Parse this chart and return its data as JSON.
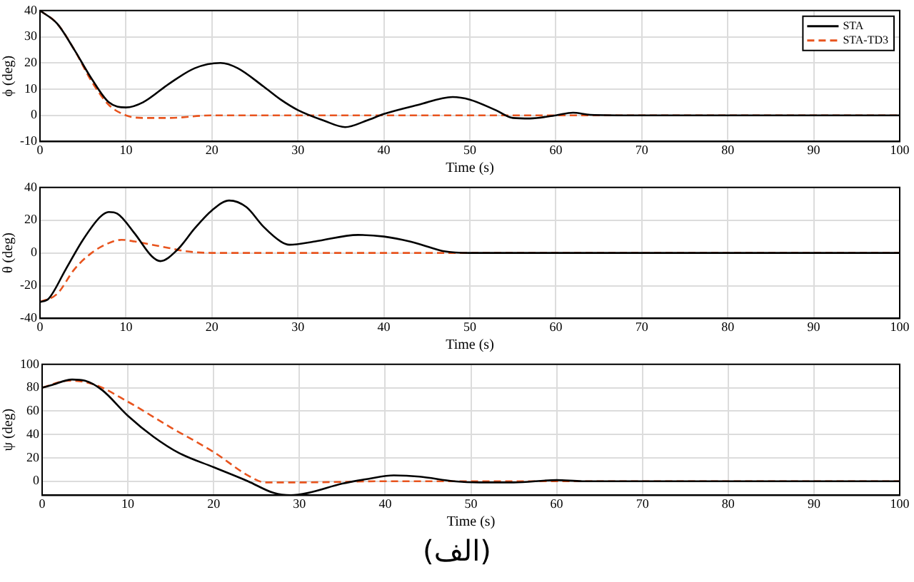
{
  "chart_data": [
    {
      "type": "line",
      "ylabel": "ϕ (deg)",
      "xlabel": "Time (s)",
      "xlim": [
        0,
        100
      ],
      "xticks": [
        0,
        10,
        20,
        30,
        40,
        50,
        60,
        70,
        80,
        90,
        100
      ],
      "ylim": [
        -10,
        40
      ],
      "yticks": [
        -10,
        0,
        10,
        20,
        30,
        40
      ],
      "grid": true,
      "legend": "top right",
      "marker": "none",
      "series": [
        {
          "name": "STA",
          "color": "#000000",
          "line_style": "solid",
          "x": [
            0,
            2,
            4,
            6,
            8,
            10,
            12,
            15,
            18,
            21,
            23,
            26,
            28,
            30,
            33,
            35.5,
            38,
            40,
            44,
            48,
            50,
            53,
            55,
            57,
            60,
            62,
            64,
            70,
            100
          ],
          "values": [
            40,
            35,
            25,
            14,
            5,
            3,
            5,
            12,
            18,
            20,
            18,
            11,
            6,
            2,
            -2,
            -4.5,
            -2,
            0.5,
            4,
            7,
            6,
            2,
            -1,
            -1.2,
            0,
            1,
            0.2,
            0,
            0
          ]
        },
        {
          "name": "STA-TD3",
          "color": "#e8541e",
          "line_style": "dashed",
          "x": [
            0,
            2,
            4,
            6,
            8,
            10,
            12,
            15,
            20,
            30,
            100
          ],
          "values": [
            40,
            35,
            25,
            13,
            4,
            0,
            -1,
            -1,
            0,
            0,
            0
          ]
        }
      ]
    },
    {
      "type": "line",
      "ylabel": "θ (deg)",
      "xlabel": "Time (s)",
      "xlim": [
        0,
        100
      ],
      "xticks": [
        0,
        10,
        20,
        30,
        40,
        50,
        60,
        70,
        80,
        90,
        100
      ],
      "ylim": [
        -40,
        40
      ],
      "yticks": [
        -40,
        -20,
        0,
        20,
        40
      ],
      "grid": true,
      "legend": false,
      "marker": "none",
      "series": [
        {
          "color": "#000000",
          "line_style": "solid",
          "x": [
            0,
            1,
            3,
            5,
            7,
            8,
            9,
            11,
            13,
            14,
            16,
            18,
            20,
            22,
            24,
            26,
            28,
            29,
            32,
            37,
            40,
            43,
            45,
            47,
            50,
            100
          ],
          "values": [
            -30,
            -28,
            -10,
            8,
            22,
            25,
            24,
            12,
            -2,
            -5,
            2,
            15,
            26,
            32,
            28,
            16,
            7,
            5,
            7,
            11,
            10,
            7,
            4,
            1,
            0,
            0
          ]
        },
        {
          "color": "#e8541e",
          "line_style": "dashed",
          "x": [
            0,
            2,
            4,
            6,
            8,
            9.5,
            11,
            13,
            15,
            17,
            20,
            100
          ],
          "values": [
            -30,
            -25,
            -10,
            0,
            6,
            8,
            7,
            5,
            3,
            1,
            0,
            0
          ]
        }
      ]
    },
    {
      "type": "line",
      "ylabel": "ψ (deg)",
      "xlabel": "Time (s)",
      "xlim": [
        0,
        100
      ],
      "xticks": [
        0,
        10,
        20,
        30,
        40,
        50,
        60,
        70,
        80,
        90,
        100
      ],
      "ylim": [
        -12,
        100
      ],
      "yticks": [
        0,
        20,
        40,
        60,
        80,
        100
      ],
      "grid": true,
      "legend": false,
      "marker": "none",
      "annotations": [
        "(الف)"
      ],
      "series": [
        {
          "color": "#000000",
          "line_style": "solid",
          "x": [
            0,
            1,
            3.5,
            5,
            7,
            10,
            13,
            16,
            20,
            24,
            27,
            29,
            31,
            35,
            38,
            41,
            44,
            48,
            51,
            55,
            60,
            63,
            70,
            100
          ],
          "values": [
            80,
            82,
            87,
            86,
            78,
            56,
            38,
            24,
            12,
            0,
            -10,
            -12,
            -10,
            -2,
            2,
            5,
            4,
            0,
            -1,
            -1,
            1,
            0,
            0,
            0
          ]
        },
        {
          "color": "#e8541e",
          "line_style": "dashed",
          "x": [
            0,
            3,
            6,
            10,
            15,
            20,
            24,
            26,
            30,
            40,
            100
          ],
          "values": [
            80,
            86,
            83,
            68,
            46,
            25,
            5,
            -1,
            -1,
            0,
            0
          ]
        }
      ]
    }
  ]
}
